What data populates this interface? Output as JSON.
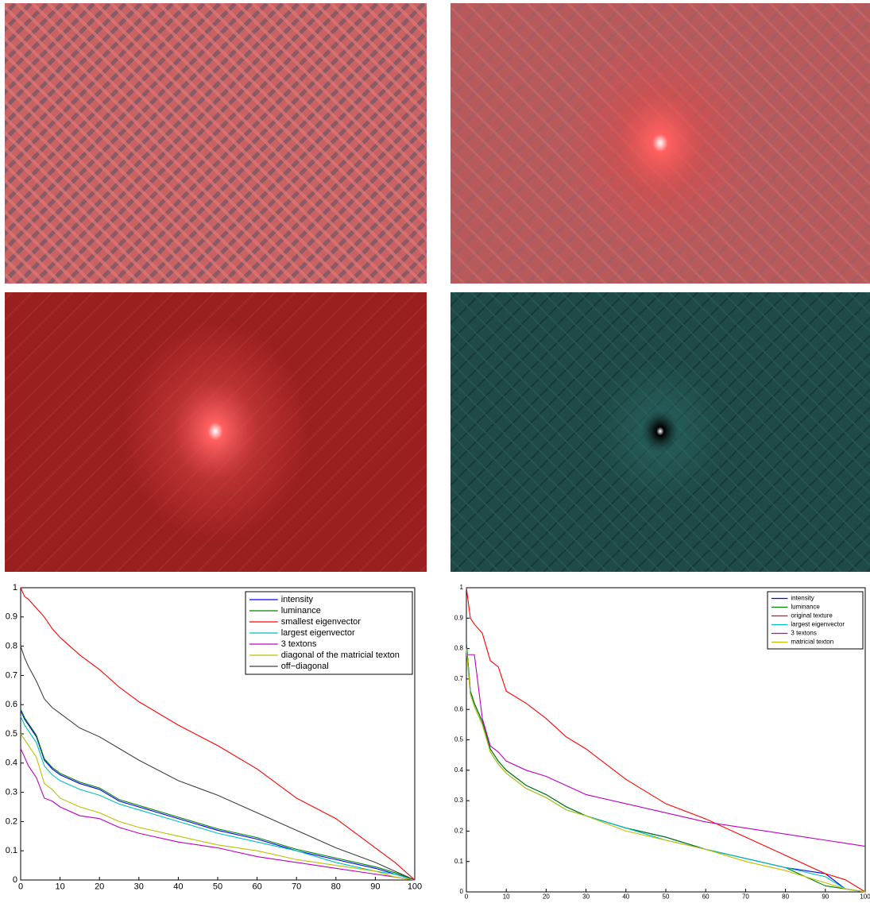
{
  "chart_data": [
    {
      "type": "line",
      "x": [
        0,
        1,
        2,
        4,
        6,
        8,
        10,
        15,
        20,
        25,
        30,
        40,
        50,
        60,
        70,
        80,
        90,
        95,
        100
      ],
      "xlim": [
        0,
        100
      ],
      "ylim": [
        0,
        1
      ],
      "xticks": [
        0,
        10,
        20,
        30,
        40,
        50,
        60,
        70,
        80,
        90,
        100
      ],
      "yticks": [
        0,
        0.1,
        0.2,
        0.3,
        0.4,
        0.5,
        0.6,
        0.7,
        0.8,
        0.9,
        1
      ],
      "legend": "upper right",
      "series": [
        {
          "name": "intensity",
          "color": "#0000ff",
          "values": [
            0.58,
            0.55,
            0.53,
            0.49,
            0.41,
            0.38,
            0.36,
            0.33,
            0.31,
            0.27,
            0.25,
            0.21,
            0.17,
            0.14,
            0.1,
            0.07,
            0.04,
            0.02,
            0
          ]
        },
        {
          "name": "luminance",
          "color": "#008000",
          "values": [
            0.585,
            0.555,
            0.535,
            0.495,
            0.415,
            0.385,
            0.365,
            0.335,
            0.315,
            0.275,
            0.255,
            0.215,
            0.175,
            0.145,
            0.105,
            0.075,
            0.045,
            0.025,
            0
          ]
        },
        {
          "name": "smallest eigenvector",
          "color": "#ff0000",
          "values": [
            1,
            0.97,
            0.96,
            0.93,
            0.9,
            0.86,
            0.83,
            0.77,
            0.72,
            0.66,
            0.61,
            0.53,
            0.46,
            0.38,
            0.28,
            0.21,
            0.11,
            0.06,
            0
          ]
        },
        {
          "name": "largest eigenvector",
          "color": "#00bfbf",
          "values": [
            0.56,
            0.53,
            0.51,
            0.47,
            0.39,
            0.36,
            0.34,
            0.31,
            0.29,
            0.26,
            0.24,
            0.2,
            0.16,
            0.13,
            0.1,
            0.06,
            0.03,
            0.02,
            0
          ]
        },
        {
          "name": "3 textons",
          "color": "#bf00bf",
          "values": [
            0.45,
            0.42,
            0.39,
            0.35,
            0.28,
            0.27,
            0.25,
            0.22,
            0.21,
            0.18,
            0.16,
            0.13,
            0.11,
            0.08,
            0.06,
            0.04,
            0.02,
            0.01,
            0
          ]
        },
        {
          "name": "diagonal of the matricial texton",
          "color": "#bfbf00",
          "values": [
            0.5,
            0.48,
            0.46,
            0.42,
            0.33,
            0.31,
            0.28,
            0.25,
            0.23,
            0.2,
            0.18,
            0.15,
            0.12,
            0.1,
            0.07,
            0.05,
            0.03,
            0.01,
            0
          ]
        },
        {
          "name": "off−diagonal",
          "color": "#404040",
          "values": [
            0.8,
            0.76,
            0.73,
            0.68,
            0.62,
            0.59,
            0.57,
            0.52,
            0.49,
            0.45,
            0.41,
            0.34,
            0.29,
            0.23,
            0.17,
            0.11,
            0.06,
            0.03,
            0
          ]
        }
      ]
    },
    {
      "type": "line",
      "x": [
        0,
        1,
        2,
        4,
        6,
        8,
        10,
        15,
        20,
        25,
        30,
        40,
        50,
        60,
        70,
        80,
        90,
        95,
        100
      ],
      "xlim": [
        0,
        100
      ],
      "ylim": [
        0,
        1
      ],
      "xticks": [
        0,
        10,
        20,
        30,
        40,
        50,
        60,
        70,
        80,
        90,
        100
      ],
      "yticks": [
        0,
        0.1,
        0.2,
        0.3,
        0.4,
        0.5,
        0.6,
        0.7,
        0.8,
        0.9,
        1
      ],
      "legend": "upper right",
      "series": [
        {
          "name": "intensity",
          "color": "#0000ff",
          "values": [
            0.82,
            0.66,
            0.62,
            0.56,
            0.47,
            0.43,
            0.4,
            0.35,
            0.32,
            0.28,
            0.25,
            0.21,
            0.18,
            0.14,
            0.11,
            0.08,
            0.06,
            0.01,
            0
          ]
        },
        {
          "name": "luminance",
          "color": "#008000",
          "values": [
            0.82,
            0.66,
            0.62,
            0.56,
            0.47,
            0.43,
            0.4,
            0.35,
            0.32,
            0.28,
            0.25,
            0.21,
            0.18,
            0.14,
            0.11,
            0.08,
            0.02,
            0.01,
            0
          ]
        },
        {
          "name": "original texture",
          "color": "#ff0000",
          "values": [
            1,
            0.9,
            0.88,
            0.85,
            0.76,
            0.74,
            0.66,
            0.62,
            0.57,
            0.51,
            0.47,
            0.37,
            0.29,
            0.24,
            0.18,
            0.12,
            0.06,
            0.04,
            0
          ]
        },
        {
          "name": "largest eigenvector",
          "color": "#00bfbf",
          "values": [
            0.8,
            0.65,
            0.61,
            0.55,
            0.46,
            0.42,
            0.39,
            0.34,
            0.31,
            0.27,
            0.25,
            0.21,
            0.17,
            0.14,
            0.11,
            0.08,
            0.05,
            0.01,
            0
          ]
        },
        {
          "name": "3 textons",
          "color": "#bf00bf",
          "values": [
            0.78,
            0.78,
            0.78,
            0.57,
            0.48,
            0.46,
            0.43,
            0.4,
            0.38,
            0.35,
            0.32,
            0.29,
            0.26,
            0.23,
            0.21,
            0.19,
            0.17,
            0.16,
            0.15
          ]
        },
        {
          "name": "matricial texton",
          "color": "#bfbf00",
          "values": [
            0.8,
            0.65,
            0.61,
            0.55,
            0.46,
            0.42,
            0.39,
            0.34,
            0.31,
            0.27,
            0.25,
            0.2,
            0.17,
            0.14,
            0.1,
            0.07,
            0.03,
            0.01,
            0
          ]
        }
      ]
    }
  ]
}
